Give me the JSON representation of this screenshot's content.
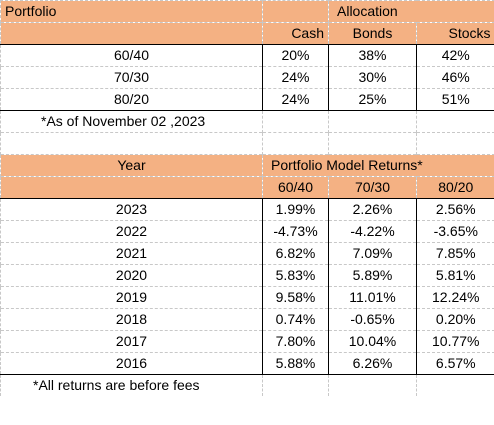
{
  "allocation": {
    "portfolio_label": "Portfolio",
    "allocation_label": "Allocation",
    "columns": [
      "Cash",
      "Bonds",
      "Stocks"
    ],
    "rows": [
      {
        "name": "60/40",
        "values": [
          "20%",
          "38%",
          "42%"
        ]
      },
      {
        "name": "70/30",
        "values": [
          "24%",
          "30%",
          "46%"
        ]
      },
      {
        "name": "80/20",
        "values": [
          "24%",
          "25%",
          "51%"
        ]
      }
    ],
    "note": "*As of November 02 ,2023"
  },
  "returns": {
    "year_label": "Year",
    "title": "Portfolio Model Returns*",
    "columns": [
      "60/40",
      "70/30",
      "80/20"
    ],
    "rows": [
      {
        "year": "2023",
        "values": [
          "1.99%",
          "2.26%",
          "2.56%"
        ]
      },
      {
        "year": "2022",
        "values": [
          "-4.73%",
          "-4.22%",
          "-3.65%"
        ]
      },
      {
        "year": "2021",
        "values": [
          "6.82%",
          "7.09%",
          "7.85%"
        ]
      },
      {
        "year": "2020",
        "values": [
          "5.83%",
          "5.89%",
          "5.81%"
        ]
      },
      {
        "year": "2019",
        "values": [
          "9.58%",
          "11.01%",
          "12.24%"
        ]
      },
      {
        "year": "2018",
        "values": [
          "0.74%",
          "-0.65%",
          "0.20%"
        ]
      },
      {
        "year": "2017",
        "values": [
          "7.80%",
          "10.04%",
          "10.77%"
        ]
      },
      {
        "year": "2016",
        "values": [
          "5.88%",
          "6.26%",
          "6.57%"
        ]
      }
    ],
    "note": "*All returns are before fees"
  },
  "colors": {
    "header_fill": "#f4b183",
    "gridline": "#c8c8c8",
    "border": "#000000"
  }
}
